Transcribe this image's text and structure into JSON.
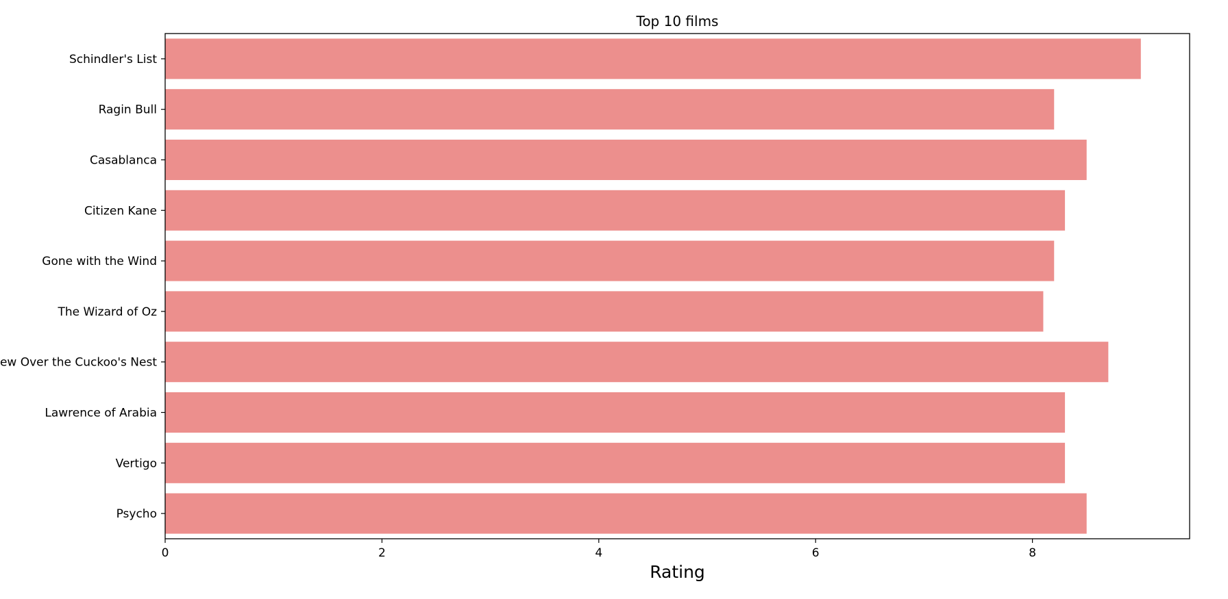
{
  "chart_data": {
    "type": "bar",
    "orientation": "horizontal",
    "title": "Top 10 films",
    "xlabel": "Rating",
    "ylabel": "",
    "categories": [
      "Schindler's List",
      "Ragin Bull",
      "Casablanca",
      "Citizen Kane",
      "Gone with the Wind",
      "The Wizard of Oz",
      "One Flew Over the Cuckoo's Nest",
      "Lawrence of Arabia",
      "Vertigo",
      "Psycho"
    ],
    "values": [
      9.0,
      8.2,
      8.5,
      8.3,
      8.2,
      8.1,
      8.7,
      8.3,
      8.3,
      8.5
    ],
    "xlim": [
      0,
      9.45
    ],
    "xticks": [
      0,
      2,
      4,
      6,
      8
    ],
    "bar_color": "#ec8f8d",
    "grid": false,
    "legend": "none"
  }
}
